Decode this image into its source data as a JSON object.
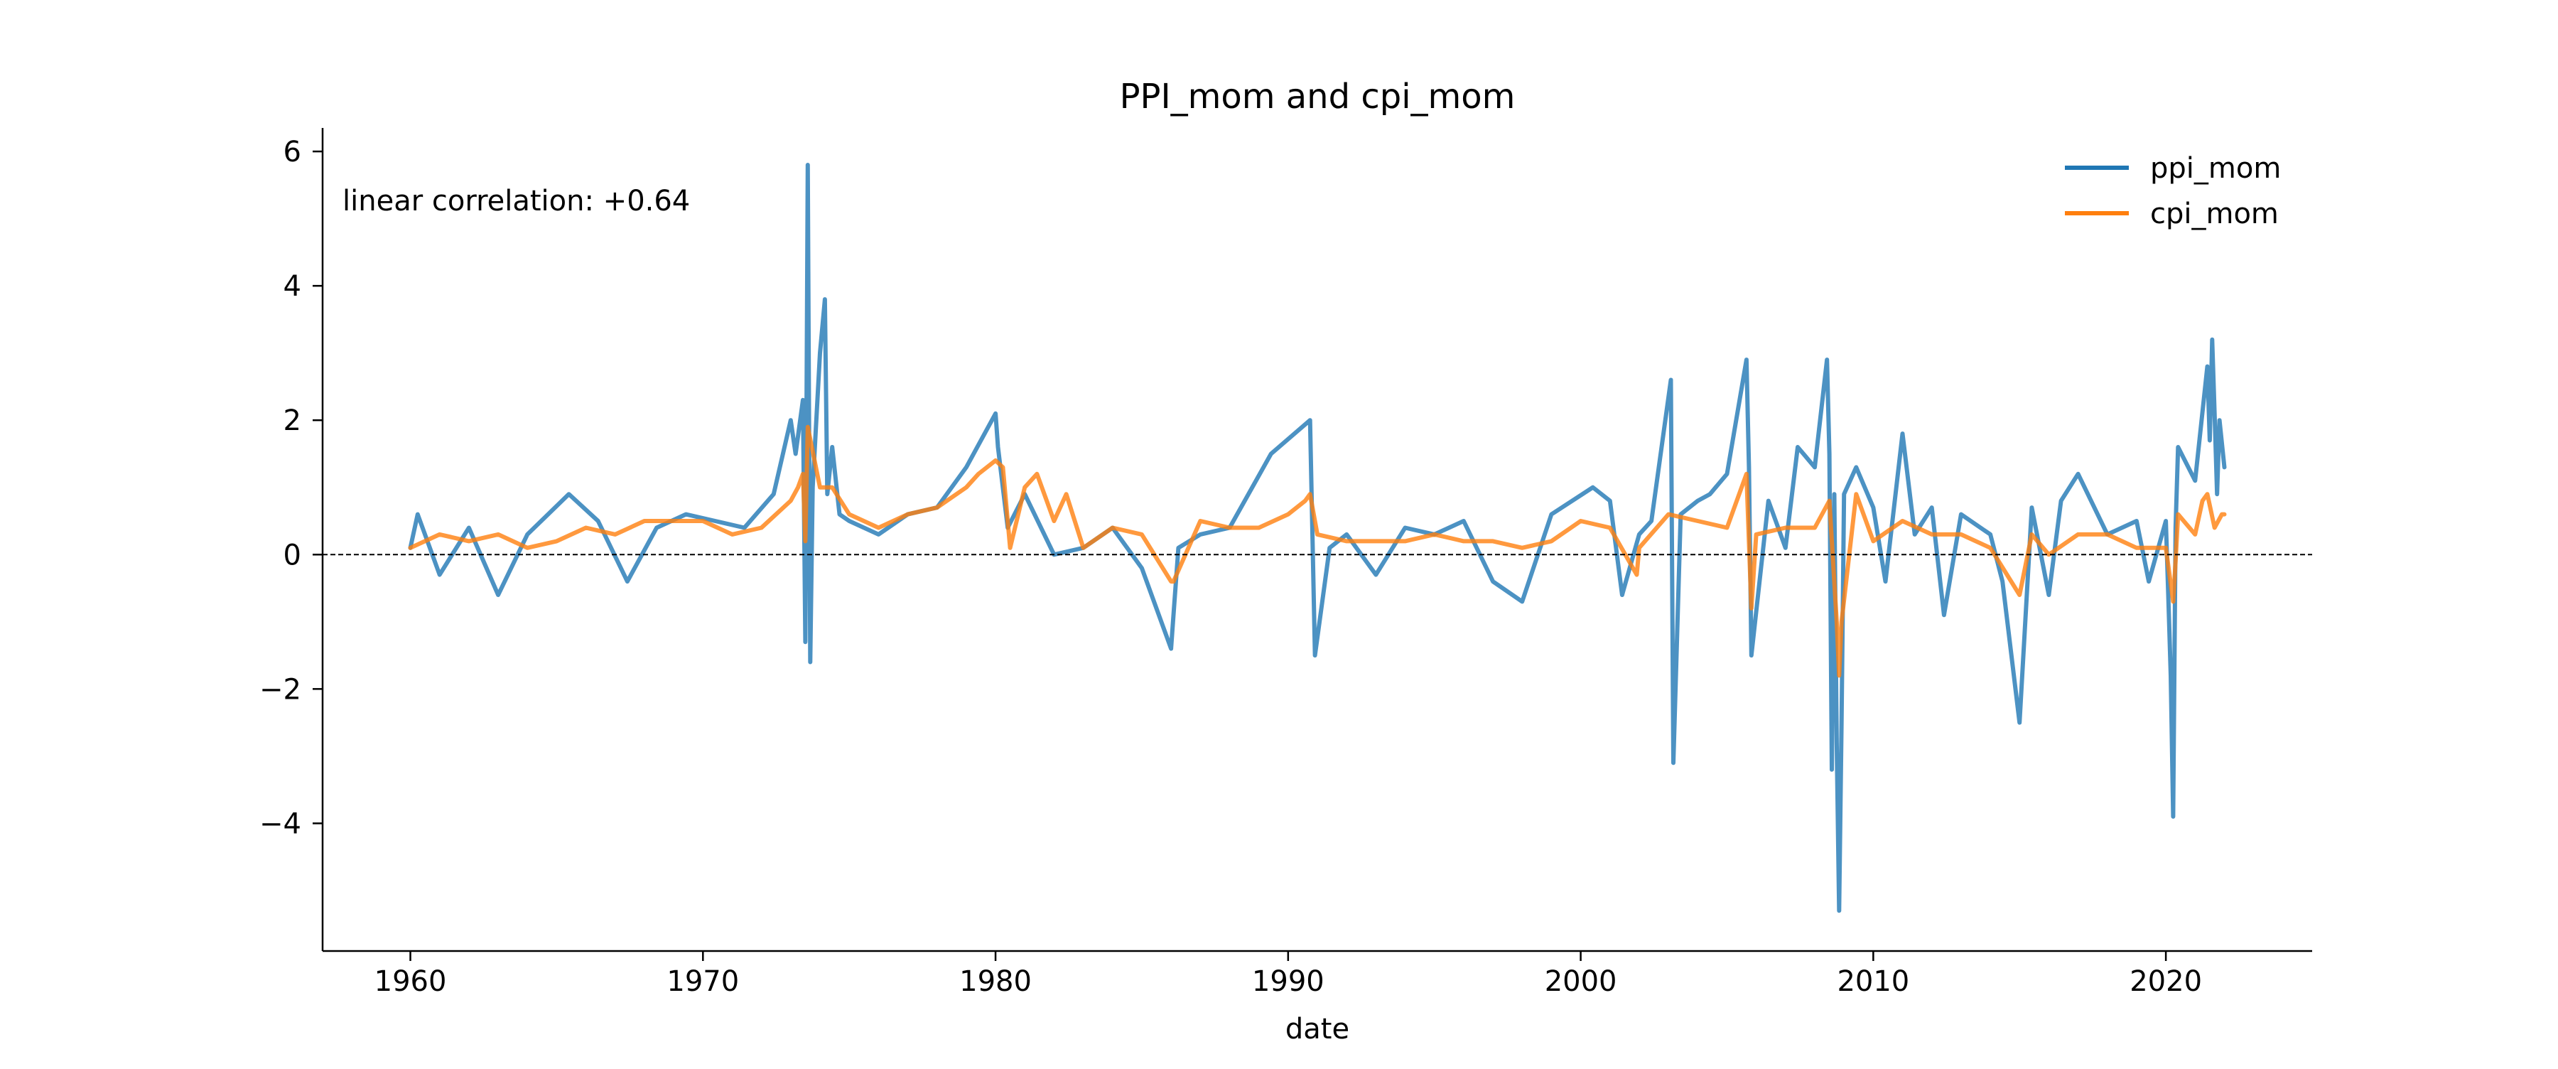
{
  "chart_data": {
    "type": "line",
    "title": "PPI_mom and cpi_mom",
    "xlabel": "date",
    "ylabel": "",
    "xlim": [
      "1957-01",
      "2025-01"
    ],
    "ylim": [
      -5.9,
      6.35
    ],
    "x_ticks": [
      "1960",
      "1970",
      "1980",
      "1990",
      "2000",
      "2010",
      "2020"
    ],
    "y_ticks": [
      -4,
      -2,
      0,
      2,
      4,
      6
    ],
    "y_tick_labels": [
      "−4",
      "−2",
      "0",
      "2",
      "4",
      "6"
    ],
    "reference_line": {
      "y": 0,
      "style": "dashed",
      "color": "#000000"
    },
    "annotation": "linear correlation: +0.64",
    "legend": {
      "position": "top-right",
      "frame": false
    },
    "grid": false,
    "series": [
      {
        "name": "ppi_mom",
        "color": "#1f77b4",
        "x": [
          "1960-01",
          "1960-04",
          "1961-01",
          "1962-01",
          "1963-01",
          "1964-01",
          "1965-06",
          "1966-06",
          "1967-06",
          "1968-06",
          "1969-06",
          "1970-06",
          "1971-06",
          "1972-06",
          "1973-01",
          "1973-03",
          "1973-06",
          "1973-07",
          "1973-08",
          "1973-09",
          "1973-10",
          "1974-01",
          "1974-03",
          "1974-04",
          "1974-06",
          "1974-09",
          "1975-01",
          "1976-01",
          "1977-01",
          "1978-01",
          "1979-01",
          "1980-01",
          "1980-02",
          "1980-06",
          "1981-01",
          "1982-01",
          "1983-01",
          "1984-01",
          "1985-01",
          "1986-01",
          "1986-02",
          "1986-04",
          "1987-01",
          "1988-01",
          "1989-06",
          "1990-10",
          "1990-12",
          "1991-06",
          "1992-01",
          "1993-01",
          "1994-01",
          "1995-01",
          "1996-01",
          "1997-01",
          "1998-01",
          "1999-01",
          "2000-06",
          "2001-01",
          "2001-06",
          "2002-01",
          "2002-06",
          "2003-02",
          "2003-03",
          "2003-06",
          "2004-01",
          "2004-06",
          "2005-01",
          "2005-09",
          "2005-10",
          "2005-11",
          "2006-06",
          "2007-01",
          "2007-06",
          "2008-01",
          "2008-06",
          "2008-07",
          "2008-08",
          "2008-09",
          "2008-10",
          "2008-11",
          "2008-12",
          "2009-01",
          "2009-06",
          "2010-01",
          "2010-06",
          "2011-01",
          "2011-06",
          "2012-01",
          "2012-06",
          "2013-01",
          "2014-01",
          "2014-06",
          "2015-01",
          "2015-06",
          "2016-01",
          "2016-06",
          "2017-01",
          "2018-01",
          "2019-01",
          "2019-06",
          "2020-01",
          "2020-02",
          "2020-03",
          "2020-04",
          "2020-05",
          "2020-06",
          "2021-01",
          "2021-06",
          "2021-07",
          "2021-08",
          "2021-09",
          "2021-10",
          "2021-11",
          "2022-01"
        ],
        "values": [
          0.1,
          0.6,
          -0.3,
          0.4,
          -0.6,
          0.3,
          0.9,
          0.5,
          -0.4,
          0.4,
          0.6,
          0.5,
          0.4,
          0.9,
          2.0,
          1.5,
          2.3,
          -1.3,
          5.8,
          -1.6,
          1.0,
          3.0,
          3.8,
          0.9,
          1.6,
          0.6,
          0.5,
          0.3,
          0.6,
          0.7,
          1.3,
          2.1,
          1.6,
          0.4,
          0.9,
          0.0,
          0.1,
          0.4,
          -0.2,
          -1.4,
          -0.9,
          0.1,
          0.3,
          0.4,
          1.5,
          2.0,
          -1.5,
          0.1,
          0.3,
          -0.3,
          0.4,
          0.3,
          0.5,
          -0.4,
          -0.7,
          0.6,
          1.0,
          0.8,
          -0.6,
          0.3,
          0.5,
          2.6,
          -3.1,
          0.6,
          0.8,
          0.9,
          1.2,
          2.9,
          1.3,
          -1.5,
          0.8,
          0.1,
          1.6,
          1.3,
          2.9,
          1.5,
          -3.2,
          0.9,
          -2.8,
          -5.3,
          -2.5,
          0.9,
          1.3,
          0.7,
          -0.4,
          1.8,
          0.3,
          0.7,
          -0.9,
          0.6,
          0.3,
          -0.4,
          -2.5,
          0.7,
          -0.6,
          0.8,
          1.2,
          0.3,
          0.5,
          -0.4,
          0.5,
          -0.6,
          -1.8,
          -3.9,
          0.4,
          1.6,
          1.1,
          2.8,
          1.7,
          3.2,
          2.1,
          0.9,
          2.0,
          1.3
        ]
      },
      {
        "name": "cpi_mom",
        "color": "#ff7f0e",
        "x": [
          "1960-01",
          "1961-01",
          "1962-01",
          "1963-01",
          "1964-01",
          "1965-01",
          "1966-01",
          "1967-01",
          "1968-01",
          "1969-01",
          "1970-01",
          "1971-01",
          "1972-01",
          "1973-01",
          "1973-04",
          "1973-06",
          "1973-07",
          "1973-08",
          "1974-01",
          "1974-06",
          "1975-01",
          "1976-01",
          "1977-01",
          "1978-01",
          "1979-01",
          "1979-06",
          "1980-01",
          "1980-04",
          "1980-07",
          "1981-01",
          "1981-06",
          "1982-01",
          "1982-06",
          "1983-01",
          "1984-01",
          "1985-01",
          "1986-01",
          "1986-02",
          "1987-01",
          "1988-01",
          "1989-01",
          "1990-01",
          "1990-08",
          "1990-10",
          "1991-01",
          "1992-01",
          "1993-01",
          "1994-01",
          "1995-01",
          "1996-01",
          "1997-01",
          "1998-01",
          "1999-01",
          "2000-01",
          "2001-01",
          "2001-12",
          "2002-01",
          "2003-01",
          "2004-01",
          "2005-01",
          "2005-09",
          "2005-11",
          "2006-01",
          "2007-01",
          "2008-01",
          "2008-07",
          "2008-10",
          "2008-11",
          "2008-12",
          "2009-06",
          "2010-01",
          "2011-01",
          "2012-01",
          "2013-01",
          "2014-01",
          "2015-01",
          "2015-06",
          "2016-01",
          "2017-01",
          "2018-01",
          "2019-01",
          "2020-01",
          "2020-04",
          "2020-05",
          "2020-06",
          "2021-01",
          "2021-04",
          "2021-06",
          "2021-09",
          "2021-12",
          "2022-01"
        ],
        "values": [
          0.1,
          0.3,
          0.2,
          0.3,
          0.1,
          0.2,
          0.4,
          0.3,
          0.5,
          0.5,
          0.5,
          0.3,
          0.4,
          0.8,
          1.0,
          1.2,
          0.2,
          1.9,
          1.0,
          1.0,
          0.6,
          0.4,
          0.6,
          0.7,
          1.0,
          1.2,
          1.4,
          1.3,
          0.1,
          1.0,
          1.2,
          0.5,
          0.9,
          0.1,
          0.4,
          0.3,
          -0.4,
          -0.4,
          0.5,
          0.4,
          0.4,
          0.6,
          0.8,
          0.9,
          0.3,
          0.2,
          0.2,
          0.2,
          0.3,
          0.2,
          0.2,
          0.1,
          0.2,
          0.5,
          0.4,
          -0.3,
          0.1,
          0.6,
          0.5,
          0.4,
          1.2,
          -0.8,
          0.3,
          0.4,
          0.4,
          0.8,
          -1.0,
          -1.8,
          -1.0,
          0.9,
          0.2,
          0.5,
          0.3,
          0.3,
          0.1,
          -0.6,
          0.3,
          0.0,
          0.3,
          0.3,
          0.1,
          0.1,
          -0.7,
          -0.1,
          0.6,
          0.3,
          0.8,
          0.9,
          0.4,
          0.6,
          0.6
        ]
      }
    ]
  }
}
